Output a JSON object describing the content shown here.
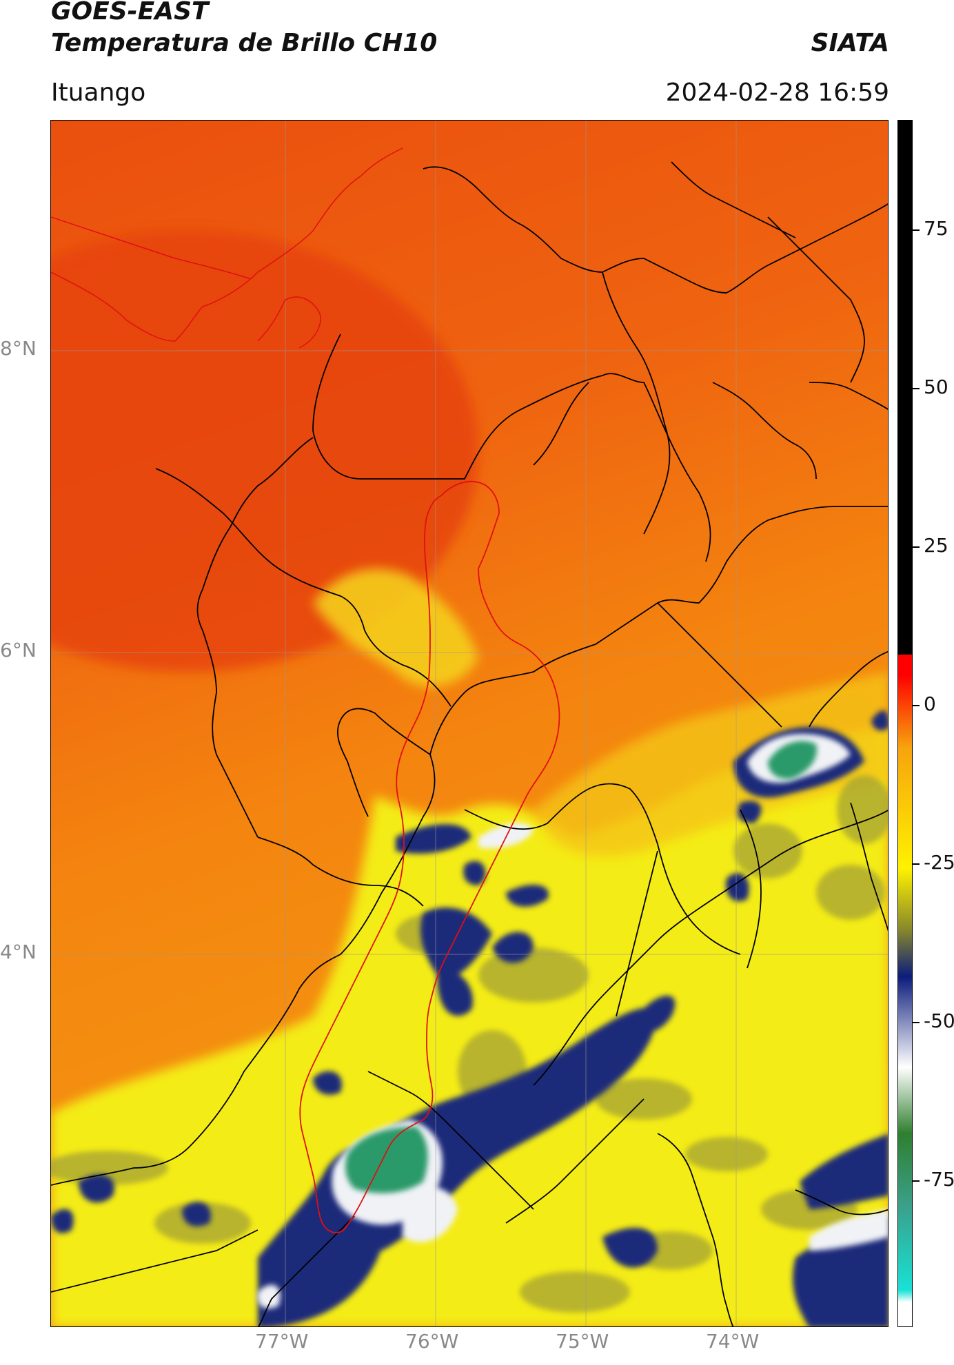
{
  "header": {
    "satellite": "GOES-EAST",
    "product": "Temperatura de Brillo CH10",
    "organization": "SIATA",
    "place": "Ituango",
    "datetime": "2024-02-28 16:59"
  },
  "map": {
    "lat_labels": [
      "8°N",
      "6°N",
      "4°N"
    ],
    "lon_labels": [
      "77°W",
      "76°W",
      "75°W",
      "74°W"
    ],
    "colors": {
      "warm_red": "#e84a0c",
      "orange": "#f4840e",
      "yellow": "#f2ee12",
      "olive": "#9a9a30",
      "dark_blue": "#1c2a78",
      "white": "#f2f4f8",
      "green": "#2a9a6a",
      "boundary_black": "#000000",
      "boundary_red": "#e01010"
    }
  },
  "colorbar": {
    "tick_labels": [
      "75",
      "50",
      "25",
      "0",
      "-25",
      "-50",
      "-75"
    ],
    "colors": {
      "black": "#000000",
      "red": "#ff0000",
      "orange": "#f7a30d",
      "yellow": "#fff200",
      "dark_blue": "#0c1c7c",
      "white": "#ffffff",
      "green": "#2f7f2f",
      "cyan": "#18e2d6"
    }
  }
}
